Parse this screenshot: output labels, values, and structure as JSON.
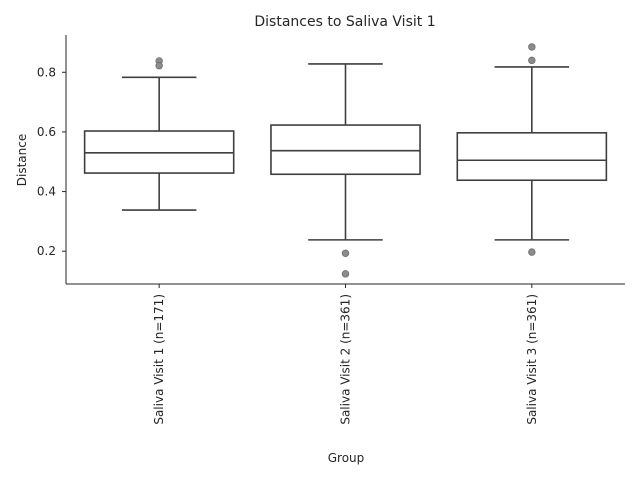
{
  "chart_data": {
    "type": "box",
    "title": "Distances to Saliva Visit 1",
    "xlabel": "Group",
    "ylabel": "Distance",
    "ylim": [
      0.09,
      0.925
    ],
    "yticks": [
      0.2,
      0.4,
      0.6,
      0.8
    ],
    "grid": false,
    "colors": {
      "line": "#3f3f3f",
      "box_fill": "#ffffff",
      "outlier": "#8c8c8c",
      "text": "#262626"
    },
    "categories": [
      "Saliva Visit 1 (n=171)",
      "Saliva Visit 2 (n=361)",
      "Saliva Visit 3 (n=361)"
    ],
    "boxes": [
      {
        "whisker_low": 0.338,
        "q1": 0.462,
        "median": 0.53,
        "q3": 0.603,
        "whisker_high": 0.783,
        "outliers": [
          0.838,
          0.822
        ]
      },
      {
        "whisker_low": 0.238,
        "q1": 0.458,
        "median": 0.537,
        "q3": 0.623,
        "whisker_high": 0.828,
        "outliers": [
          0.193,
          0.124
        ]
      },
      {
        "whisker_low": 0.238,
        "q1": 0.438,
        "median": 0.505,
        "q3": 0.597,
        "whisker_high": 0.818,
        "outliers": [
          0.885,
          0.84,
          0.197
        ]
      }
    ]
  }
}
